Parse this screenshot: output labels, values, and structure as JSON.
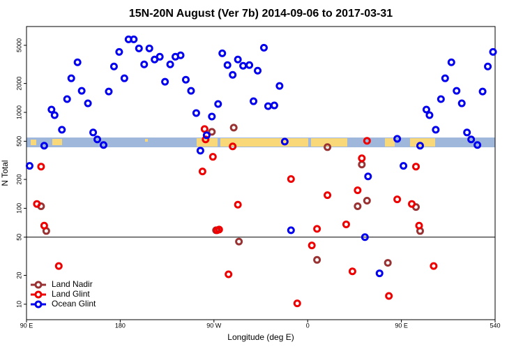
{
  "chart_data": {
    "type": "scatter",
    "title": "15N-20N August (Ver 7b)   2014-09-06 to 2017-03-31",
    "x_label": "Longitude (deg E)",
    "y_label": "N Total",
    "log_y": true,
    "legend": "lower left",
    "hline": 50,
    "xlim": [
      90,
      540
    ],
    "ylim": [
      6.9,
      7850
    ],
    "xticks": [
      {
        "value": 90,
        "label": "90 E"
      },
      180,
      {
        "value": 270,
        "label": "90 W"
      },
      {
        "value": 360,
        "label": "0"
      },
      {
        "value": 450,
        "label": "90 E"
      },
      540
    ],
    "yticks": [
      10,
      20,
      50,
      100,
      200,
      500,
      1000,
      2000,
      5000
    ],
    "series": [
      {
        "name": "Land Nadir",
        "color": "#993333",
        "x": [
          104,
          109,
          268,
          272,
          289,
          294,
          379,
          369,
          408,
          412,
          417,
          437,
          464,
          468
        ],
        "values": [
          105,
          58,
          627,
          59,
          693,
          45,
          434,
          29,
          105,
          286,
          120,
          27,
          103,
          58
        ]
      },
      {
        "name": "Land Glint",
        "color": "#ee0000",
        "x": [
          100,
          104,
          107,
          121,
          259,
          261,
          262,
          269,
          273,
          275,
          284,
          288,
          293,
          344,
          350,
          364,
          369,
          379,
          397,
          403,
          408,
          412,
          417,
          438,
          446,
          460,
          464,
          467,
          481
        ],
        "values": [
          111,
          272,
          66,
          25,
          242,
          670,
          522,
          344,
          59,
          60,
          20.5,
          442,
          109,
          202,
          10.2,
          41,
          61,
          137,
          68,
          22,
          154,
          332,
          505,
          12.2,
          124,
          111,
          272,
          66,
          25
        ]
      },
      {
        "name": "Ocean Glint",
        "color": "#0000ee",
        "x": [
          93,
          107,
          114,
          117,
          124,
          129,
          133,
          139,
          143,
          149,
          154,
          158,
          164,
          169,
          174,
          179,
          184,
          188,
          193,
          198,
          203,
          208,
          213,
          218,
          223,
          228,
          233,
          238,
          243,
          248,
          253,
          257,
          263,
          268,
          274,
          278,
          283,
          288,
          293,
          298,
          304,
          308,
          312,
          318,
          322,
          328,
          333,
          338,
          344,
          415,
          418,
          429,
          446,
          452,
          468,
          474,
          477,
          483,
          488,
          492,
          498,
          503,
          508,
          513,
          517,
          523,
          528,
          533,
          538
        ],
        "values": [
          277,
          449,
          1069,
          935,
          659,
          1374,
          2265,
          3325,
          1678,
          1242,
          617,
          522,
          457,
          1649,
          3008,
          4270,
          2265,
          5770,
          5770,
          4645,
          3162,
          4645,
          3556,
          3800,
          2084,
          3162,
          3800,
          3930,
          2190,
          1678,
          984,
          399,
          577,
          905,
          1222,
          4130,
          3110,
          2460,
          3556,
          3060,
          3110,
          1306,
          2722,
          4720,
          1161,
          1181,
          1885,
          496,
          59,
          50,
          215,
          21,
          530,
          277,
          449,
          1069,
          935,
          659,
          1374,
          2265,
          3325,
          1678,
          1242,
          617,
          522,
          457,
          1649,
          3008,
          4270
        ]
      }
    ]
  }
}
